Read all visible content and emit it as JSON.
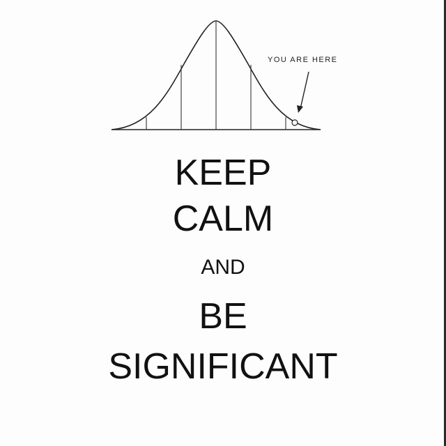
{
  "annotation": {
    "text": "YOU ARE HERE"
  },
  "slogan": {
    "line1": "KEEP",
    "line2": "CALM",
    "line3": "AND",
    "line4": "BE",
    "line5": "SIGNIFICANT"
  },
  "colors": {
    "ink": "#111111",
    "background": "#fdfdfd"
  },
  "icons": {
    "curve": "bell-curve-icon",
    "pointer": "arrow-icon"
  }
}
